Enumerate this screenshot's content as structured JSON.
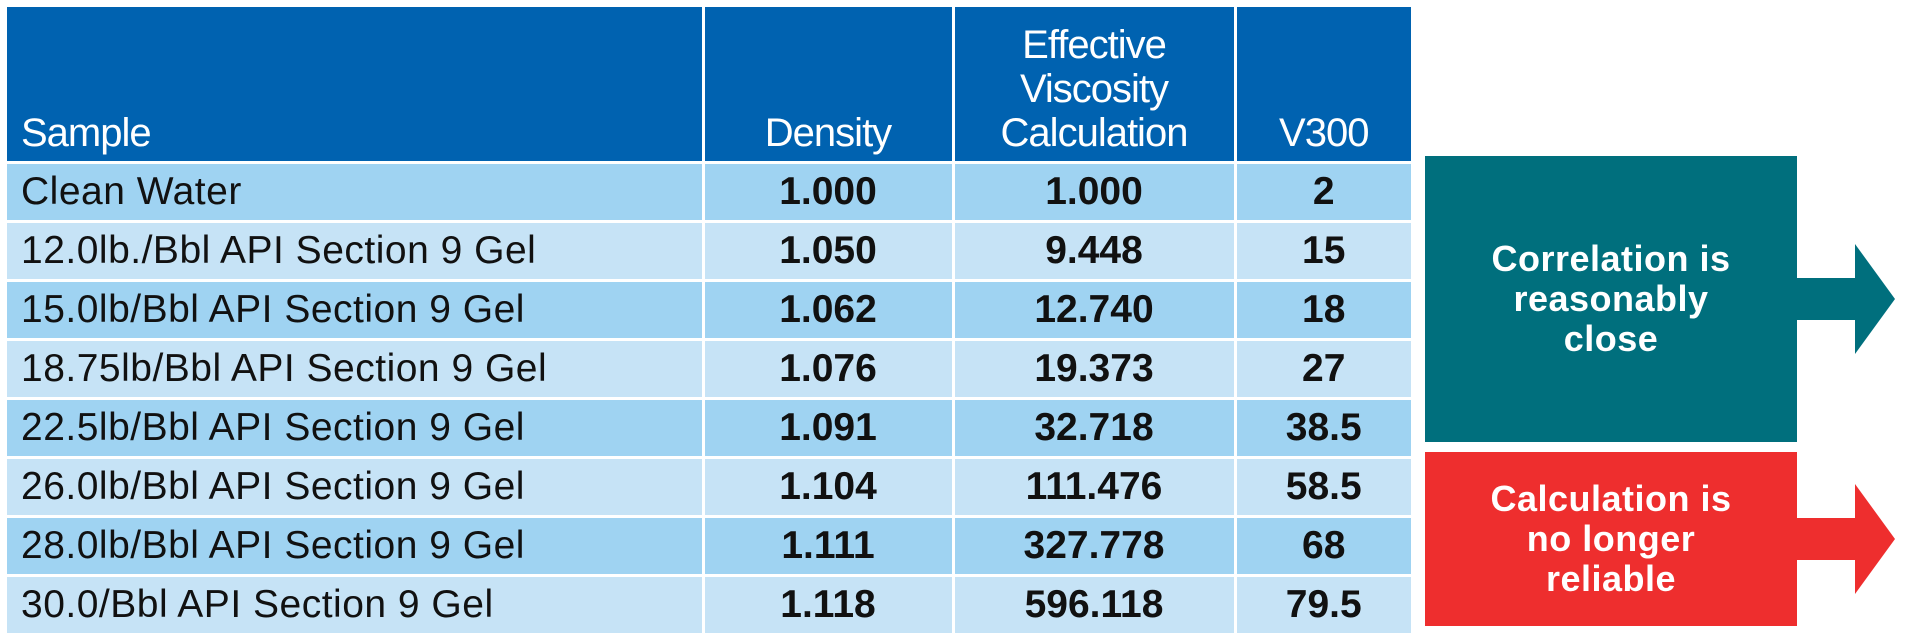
{
  "table": {
    "headers": [
      "Sample",
      "Density",
      "Effective\nViscosity\nCalculation",
      "V300"
    ],
    "header_lines": {
      "col3": [
        "Effective",
        "Viscosity",
        "Calculation"
      ]
    },
    "rows": [
      {
        "sample": "Clean Water",
        "density": "1.000",
        "viscosity": "1.000",
        "v300": "2"
      },
      {
        "sample": "12.0lb./Bbl API Section 9 Gel",
        "density": "1.050",
        "viscosity": "9.448",
        "v300": "15"
      },
      {
        "sample": "15.0lb/Bbl API Section 9 Gel",
        "density": "1.062",
        "viscosity": "12.740",
        "v300": "18"
      },
      {
        "sample": "18.75lb/Bbl API Section 9 Gel",
        "density": "1.076",
        "viscosity": "19.373",
        "v300": "27"
      },
      {
        "sample": "22.5lb/Bbl API Section 9 Gel",
        "density": "1.091",
        "viscosity": "32.718",
        "v300": "38.5"
      },
      {
        "sample": "26.0lb/Bbl API Section 9 Gel",
        "density": "1.104",
        "viscosity": "111.476",
        "v300": "58.5"
      },
      {
        "sample": "28.0lb/Bbl API Section 9 Gel",
        "density": "1.111",
        "viscosity": "327.778",
        "v300": "68"
      },
      {
        "sample": "30.0/Bbl API Section 9 Gel",
        "density": "1.118",
        "viscosity": "596.118",
        "v300": "79.5"
      }
    ]
  },
  "callouts": {
    "correlation": {
      "lines": [
        "Correlation is",
        "reasonably",
        "close"
      ],
      "color": "#006f7d"
    },
    "unreliable": {
      "lines": [
        "Calculation is",
        "no longer",
        "reliable"
      ],
      "color": "#ee2e2e"
    }
  },
  "colors": {
    "header_bg": "#0062b0",
    "row_dark": "#9fd3f2",
    "row_light": "#c6e3f6"
  }
}
